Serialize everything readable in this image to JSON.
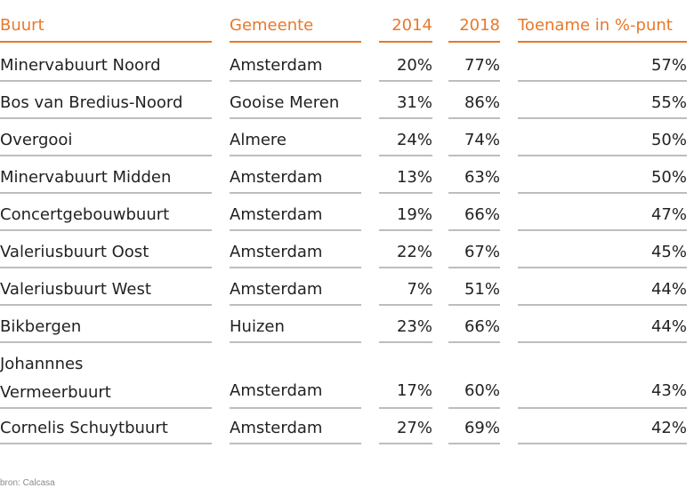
{
  "chart_data": {
    "type": "table",
    "columns": [
      "Buurt",
      "Gemeente",
      "2014",
      "2018",
      "Toename in %-punt"
    ],
    "rows": [
      [
        "Minervabuurt Noord",
        "Amsterdam",
        "20%",
        "77%",
        "57%"
      ],
      [
        "Bos van Bredius-Noord",
        "Gooise Meren",
        "31%",
        "86%",
        "55%"
      ],
      [
        "Overgooi",
        "Almere",
        "24%",
        "74%",
        "50%"
      ],
      [
        "Minervabuurt Midden",
        "Amsterdam",
        "13%",
        "63%",
        "50%"
      ],
      [
        "Concertgebouwbuurt",
        "Amsterdam",
        "19%",
        "66%",
        "47%"
      ],
      [
        "Valeriusbuurt Oost",
        "Amsterdam",
        "22%",
        "67%",
        "45%"
      ],
      [
        "Valeriusbuurt West",
        "Amsterdam",
        "7%",
        "51%",
        "44%"
      ],
      [
        "Bikbergen",
        "Huizen",
        "23%",
        "66%",
        "44%"
      ],
      [
        [
          "Johannnes",
          "Vermeerbuurt"
        ],
        "Amsterdam",
        "17%",
        "60%",
        "43%"
      ],
      [
        "Cornelis Schuytbuurt",
        "Amsterdam",
        "27%",
        "69%",
        "42%"
      ]
    ]
  },
  "source": "bron: Calcasa",
  "colors": {
    "accent": "#e8782a",
    "rule": "#bdbdbd",
    "text": "#222222",
    "source_text": "#8a8a8a"
  }
}
